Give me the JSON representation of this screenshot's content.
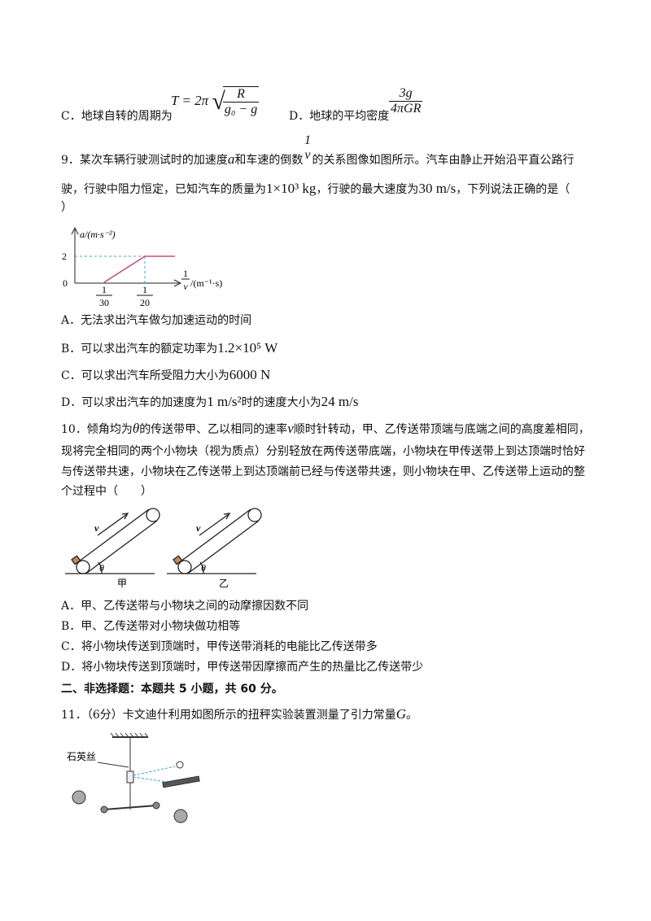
{
  "q8": {
    "c_text": "C．地球自转的周期为",
    "c_lhs": "T = 2π",
    "c_num": "R",
    "c_den": "g₀ − g",
    "d_text": "D．地球的平均密度",
    "d_num": "3g",
    "d_den": "4πGR"
  },
  "q9": {
    "stem_1": "9．某次车辆行驶测试时的加速度",
    "a": "a",
    "stem_2": "和车速的倒数",
    "inv_num": "1",
    "inv_den": "v",
    "stem_3": "的关系图像如图所示。汽车由静止开始沿平直公路行",
    "stem_4": "驶，行驶中阻力恒定，已知汽车的质量为",
    "mass": "1×10³ kg",
    "stem_5": "，行驶的最大速度为",
    "vmax": "30 m/s",
    "stem_6": "，下列说法正确的是（",
    "stem_7": "）",
    "graph": {
      "y_label": "a/(m·s⁻²)",
      "y_tick": "2",
      "origin": "0",
      "x_tick1_num": "1",
      "x_tick1_den": "30",
      "x_tick2_num": "1",
      "x_tick2_den": "20",
      "x_label_num": "1",
      "x_label_den": "v",
      "x_label_unit": "/(m⁻¹·s)"
    },
    "options": [
      {
        "text": "A．无法求出汽车做匀加速运动的时间"
      },
      {
        "text": "B．可以求出汽车的额定功率为",
        "math": "1.2×10⁵ W"
      },
      {
        "text": "C．可以求出汽车所受阻力大小为",
        "math": "6000 N"
      },
      {
        "text": "D．可以求出汽车的加速度为",
        "math": "1 m/s²",
        "text2": "时的速度大小为",
        "math2": "24 m/s"
      }
    ]
  },
  "q10": {
    "stem_1": "10．倾角均为",
    "theta": "θ",
    "stem_2": "的传送带甲、乙以相同的速率",
    "v": "v",
    "stem_3": "顺时针转动，甲、乙传送带顶端与底端之间的高度差相同，",
    "line_2": "现将完全相同的两个小物块（视为质点）分别轻放在两传送带底端，小物块在甲传送带上到达顶端时恰好",
    "line_3": "与传送带共速，小物块在乙传送带上到达顶端前已经与传送带共速，则小物块在甲、乙传送带上运动的整",
    "line_4": "个过程中（　　）",
    "figures": [
      {
        "v": "v",
        "theta": "θ",
        "caption": "甲"
      },
      {
        "v": "v",
        "theta": "θ",
        "caption": "乙"
      }
    ],
    "options": [
      "A．甲、乙传送带与小物块之间的动摩擦因数不同",
      "B．甲、乙传送带对小物块做功相等",
      "C．将小物块传送到顶端时，甲传送带消耗的电能比乙传送带多",
      "D．将小物块传送到顶端时，甲传送带因摩擦而产生的热量比乙传送带少"
    ]
  },
  "section": "二、非选择题：本题共 5 小题，共 60 分。",
  "q11": {
    "stem": "11．（6分）卡文迪什利用如图所示的扭秤实验装置测量了引力常量",
    "G": "G",
    "end": "。",
    "fig_label": "石英丝"
  }
}
